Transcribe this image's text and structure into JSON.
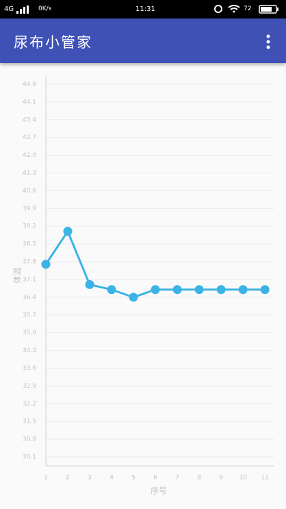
{
  "status_bar": {
    "network": "4G",
    "speed": "0K/s",
    "time": "11:31",
    "battery": "72"
  },
  "app_bar": {
    "title": "尿布小管家"
  },
  "chart_data": {
    "type": "line",
    "x_label": "序号",
    "y_label": "体温",
    "x": [
      1,
      2,
      3,
      4,
      5,
      6,
      7,
      8,
      9,
      10,
      11
    ],
    "values": [
      37.7,
      39.0,
      36.9,
      36.7,
      36.4,
      36.7,
      36.7,
      36.7,
      36.7,
      36.7,
      36.7
    ],
    "color": "#3bb3e4",
    "xlim": [
      1,
      11.4
    ],
    "xticks": [
      1,
      2,
      3,
      4,
      5,
      6,
      7,
      8,
      9,
      10,
      11
    ],
    "ylim": [
      29.75,
      45.15
    ],
    "yticks": [
      30.1,
      30.8,
      31.5,
      32.2,
      32.9,
      33.6,
      34.3,
      {
        "value": 35,
        "label": "35.0"
      },
      35.7,
      36.4,
      37.1,
      37.8,
      38.5,
      39.2,
      39.9,
      40.6,
      41.3,
      {
        "value": 42,
        "label": "42.0"
      },
      42.7,
      43.4,
      44.1,
      44.8
    ],
    "grid": true
  }
}
